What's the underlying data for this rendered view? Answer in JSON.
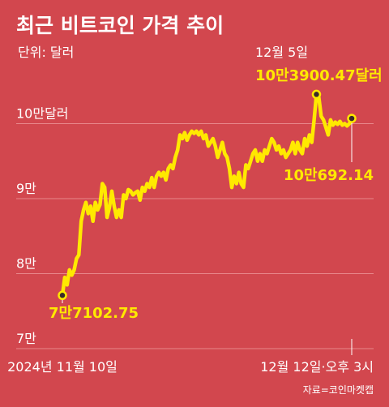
{
  "title": "최근 비트코인 가격 추이",
  "unit_label": "단위: 달러",
  "source": "자료=코인마켓캡",
  "colors": {
    "background": "#d2474e",
    "line": "#ffe900",
    "text": "#ffffff",
    "grid": "#e8878b",
    "highlight_text": "#ffe900"
  },
  "chart_data": {
    "type": "line",
    "title": "최근 비트코인 가격 추이",
    "ylabel": "달러",
    "ylim": [
      70000,
      109000
    ],
    "y_ticks": [
      {
        "value": 100000,
        "label": "10만달러"
      },
      {
        "value": 90000,
        "label": "9만"
      },
      {
        "value": 80000,
        "label": "8만"
      },
      {
        "value": 70000,
        "label": "7만"
      }
    ],
    "x_labels": [
      "2024년 11월 10일",
      "12월 12일·오후 3시"
    ],
    "grid": true,
    "series": [
      {
        "values": [
          77102.75,
          79500,
          78500,
          80500,
          79800,
          80500,
          82000,
          82500,
          87000,
          88500,
          89500,
          88000,
          89000,
          87000,
          89500,
          88500,
          89200,
          92000,
          91500,
          87500,
          88800,
          91000,
          89000,
          87500,
          88500,
          87500,
          90500,
          90000,
          91200,
          91000,
          90500,
          90800,
          91000,
          89800,
          91500,
          91000,
          92000,
          91500,
          92800,
          91500,
          93000,
          93500,
          93000,
          93500,
          92500,
          94000,
          94500,
          94000,
          95500,
          96500,
          98500,
          98000,
          98800,
          97800,
          98500,
          99000,
          98700,
          99000,
          98500,
          99000,
          98000,
          98500,
          97000,
          97500,
          98000,
          97000,
          95500,
          96500,
          97500,
          96000,
          95500,
          94000,
          91500,
          93000,
          92000,
          93500,
          92000,
          91500,
          94500,
          94000,
          95000,
          96000,
          96500,
          95000,
          96000,
          95000,
          96500,
          96000,
          97000,
          98000,
          97500,
          96500,
          97000,
          96000,
          96500,
          95500,
          96000,
          96500,
          97500,
          96000,
          97500,
          96500,
          96000,
          98000,
          97000,
          98500,
          97500,
          100500,
          103900.47,
          103500,
          101000,
          100500,
          99500,
          98500,
          100500,
          99800,
          100200,
          99900,
          100300,
          99800,
          100000,
          99700,
          100000,
          100692.14
        ]
      }
    ],
    "annotations": [
      {
        "label": "7만7102.75",
        "value": 77102.75,
        "point": "start"
      },
      {
        "label": "12월 5일",
        "value": 103900.47,
        "point": "peak"
      },
      {
        "label": "10만3900.47달러",
        "value": 103900.47,
        "point": "peak"
      },
      {
        "label": "10만692.14",
        "value": 100692.14,
        "point": "end"
      }
    ]
  }
}
